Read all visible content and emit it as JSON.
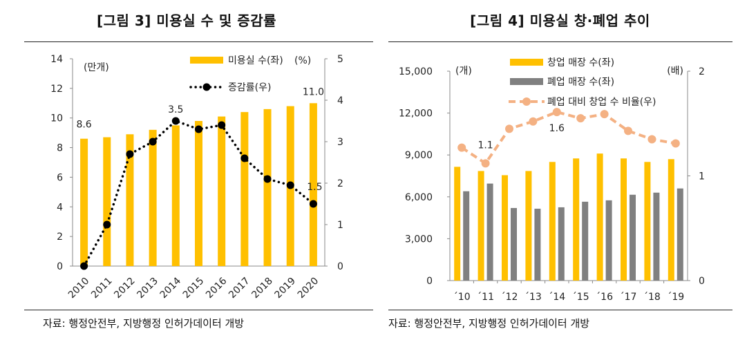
{
  "panels": [
    {
      "title": "[그림 3] 미용실 수 및 증감률",
      "source": "자료: 행정안전부, 지방행정 인허가데이터 개방",
      "chart_data": {
        "type": "bar",
        "title": "[그림 3] 미용실 수 및 증감률",
        "categories": [
          "2010",
          "2011",
          "2012",
          "2013",
          "2014",
          "2015",
          "2016",
          "2017",
          "2018",
          "2019",
          "2020"
        ],
        "left_axis": {
          "unit_label": "(만개)",
          "ylim": [
            0,
            14
          ],
          "ticks": [
            "0",
            "2",
            "4",
            "6",
            "8",
            "10",
            "12",
            "14"
          ]
        },
        "right_axis": {
          "ylim": [
            0,
            5
          ],
          "ticks": [
            "0",
            "1",
            "2",
            "3",
            "4",
            "5"
          ]
        },
        "series": [
          {
            "name": "미용실 수(좌)",
            "kind": "bar",
            "axis": "left",
            "color": "#FFC000",
            "values": [
              8.6,
              8.7,
              8.9,
              9.2,
              9.5,
              9.8,
              10.1,
              10.4,
              10.6,
              10.8,
              11.0
            ]
          },
          {
            "name": "증감률(우)",
            "kind": "line-dotted",
            "axis": "right",
            "color": "#000000",
            "values": [
              0.0,
              1.0,
              2.7,
              3.0,
              3.5,
              3.3,
              3.4,
              2.6,
              2.1,
              1.95,
              1.5
            ]
          }
        ],
        "legend_extra": "(%)",
        "data_labels": [
          {
            "series": 0,
            "index": 0,
            "text": "8.6"
          },
          {
            "series": 0,
            "index": 10,
            "text": "11.0"
          },
          {
            "series": 1,
            "index": 4,
            "text": "3.5"
          },
          {
            "series": 1,
            "index": 10,
            "text": "1.5"
          }
        ]
      }
    },
    {
      "title": "[그림 4] 미용실 창·폐업 추이",
      "source": "자료: 행정안전부, 지방행정 인허가데이터 개방",
      "chart_data": {
        "type": "bar",
        "title": "[그림 4] 미용실 창·폐업 추이",
        "categories": [
          "´10",
          "´11",
          "´12",
          "´13",
          "´14",
          "´15",
          "´16",
          "´17",
          "´18",
          "´19"
        ],
        "left_axis": {
          "unit_label": "(개)",
          "ylim": [
            0,
            15000
          ],
          "ticks": [
            "0",
            "3,000",
            "6,000",
            "9,000",
            "12,000",
            "15,000"
          ]
        },
        "right_axis": {
          "unit_label": "(배)",
          "ylim": [
            0,
            2
          ],
          "ticks": [
            "0",
            "1",
            "2"
          ]
        },
        "series": [
          {
            "name": "창업 매장 수(좌)",
            "kind": "bar",
            "axis": "left",
            "color": "#FFC000",
            "values": [
              8150,
              7850,
              7550,
              7850,
              8500,
              8750,
              9100,
              8750,
              8500,
              8700
            ]
          },
          {
            "name": "폐업 매장 수(좌)",
            "kind": "bar",
            "axis": "left",
            "color": "#808080",
            "values": [
              6400,
              6950,
              5200,
              5150,
              5250,
              5650,
              5750,
              6150,
              6300,
              6600
            ]
          },
          {
            "name": "폐업 대비 창업 수 비율(우)",
            "kind": "line-dashed",
            "axis": "right",
            "color": "#F4B183",
            "values": [
              1.27,
              1.12,
              1.45,
              1.52,
              1.61,
              1.55,
              1.59,
              1.43,
              1.35,
              1.31
            ]
          }
        ],
        "data_labels": [
          {
            "series": 2,
            "index": 1,
            "text": "1.1"
          },
          {
            "series": 2,
            "index": 4,
            "text": "1.6"
          }
        ]
      }
    }
  ]
}
